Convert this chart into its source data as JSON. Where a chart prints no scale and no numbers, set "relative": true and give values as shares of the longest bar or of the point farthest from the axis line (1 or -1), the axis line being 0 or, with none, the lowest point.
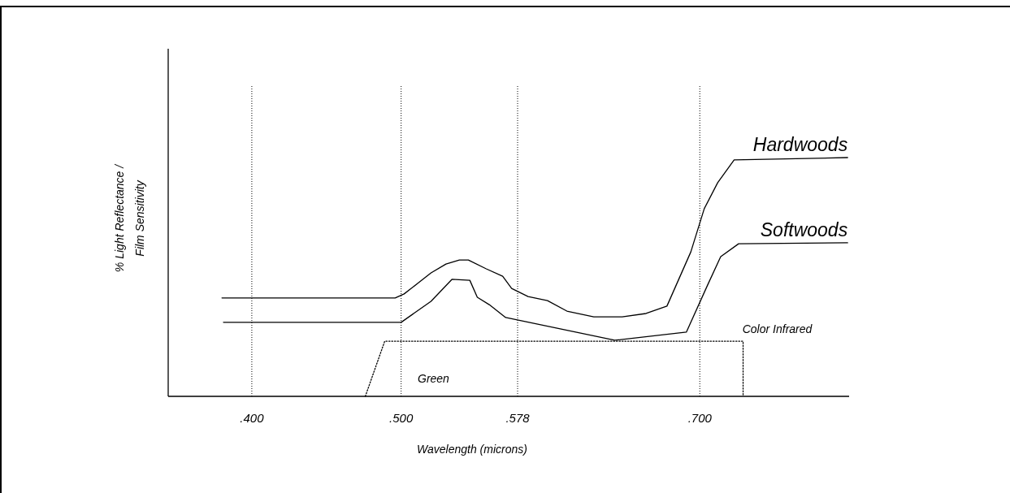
{
  "chart_data": {
    "type": "line",
    "relative": true,
    "xlabel": "Wavelength (microns)",
    "ylabel": "% Light Reflectance / Film Sensitivity",
    "xlim": [
      0.344,
      0.8
    ],
    "xticks": [
      {
        "value": 0.4,
        "label": ".400"
      },
      {
        "value": 0.5,
        "label": ".500"
      },
      {
        "value": 0.578,
        "label": ".578"
      },
      {
        "value": 0.7,
        "label": ".700"
      }
    ],
    "grid": "x",
    "marker": "none",
    "series": [
      {
        "name": "Hardwoods",
        "color": "#000000",
        "x": [
          0.38,
          0.496,
          0.502,
          0.511,
          0.52,
          0.53,
          0.539,
          0.545,
          0.557,
          0.568,
          0.574,
          0.585,
          0.598,
          0.611,
          0.629,
          0.648,
          0.664,
          0.678,
          0.694,
          0.703,
          0.712,
          0.723,
          0.799
        ],
        "values": [
          0.412,
          0.412,
          0.429,
          0.473,
          0.517,
          0.554,
          0.571,
          0.571,
          0.534,
          0.503,
          0.452,
          0.418,
          0.401,
          0.357,
          0.333,
          0.333,
          0.347,
          0.378,
          0.605,
          0.786,
          0.895,
          0.99,
          1.0
        ]
      },
      {
        "name": "Softwoods",
        "color": "#000000",
        "x": [
          0.381,
          0.5,
          0.52,
          0.534,
          0.546,
          0.551,
          0.559,
          0.57,
          0.643,
          0.691,
          0.705,
          0.714,
          0.726,
          0.799
        ],
        "values": [
          0.31,
          0.31,
          0.398,
          0.49,
          0.486,
          0.415,
          0.384,
          0.33,
          0.235,
          0.269,
          0.463,
          0.585,
          0.639,
          0.643
        ]
      },
      {
        "color": "#000000",
        "line_style": "dotted",
        "x": [
          0.476,
          0.489,
          0.729,
          0.729
        ],
        "values": [
          0,
          0.231,
          0.231,
          0
        ]
      }
    ],
    "annotations": [
      "Green",
      "Color Infrared"
    ]
  }
}
